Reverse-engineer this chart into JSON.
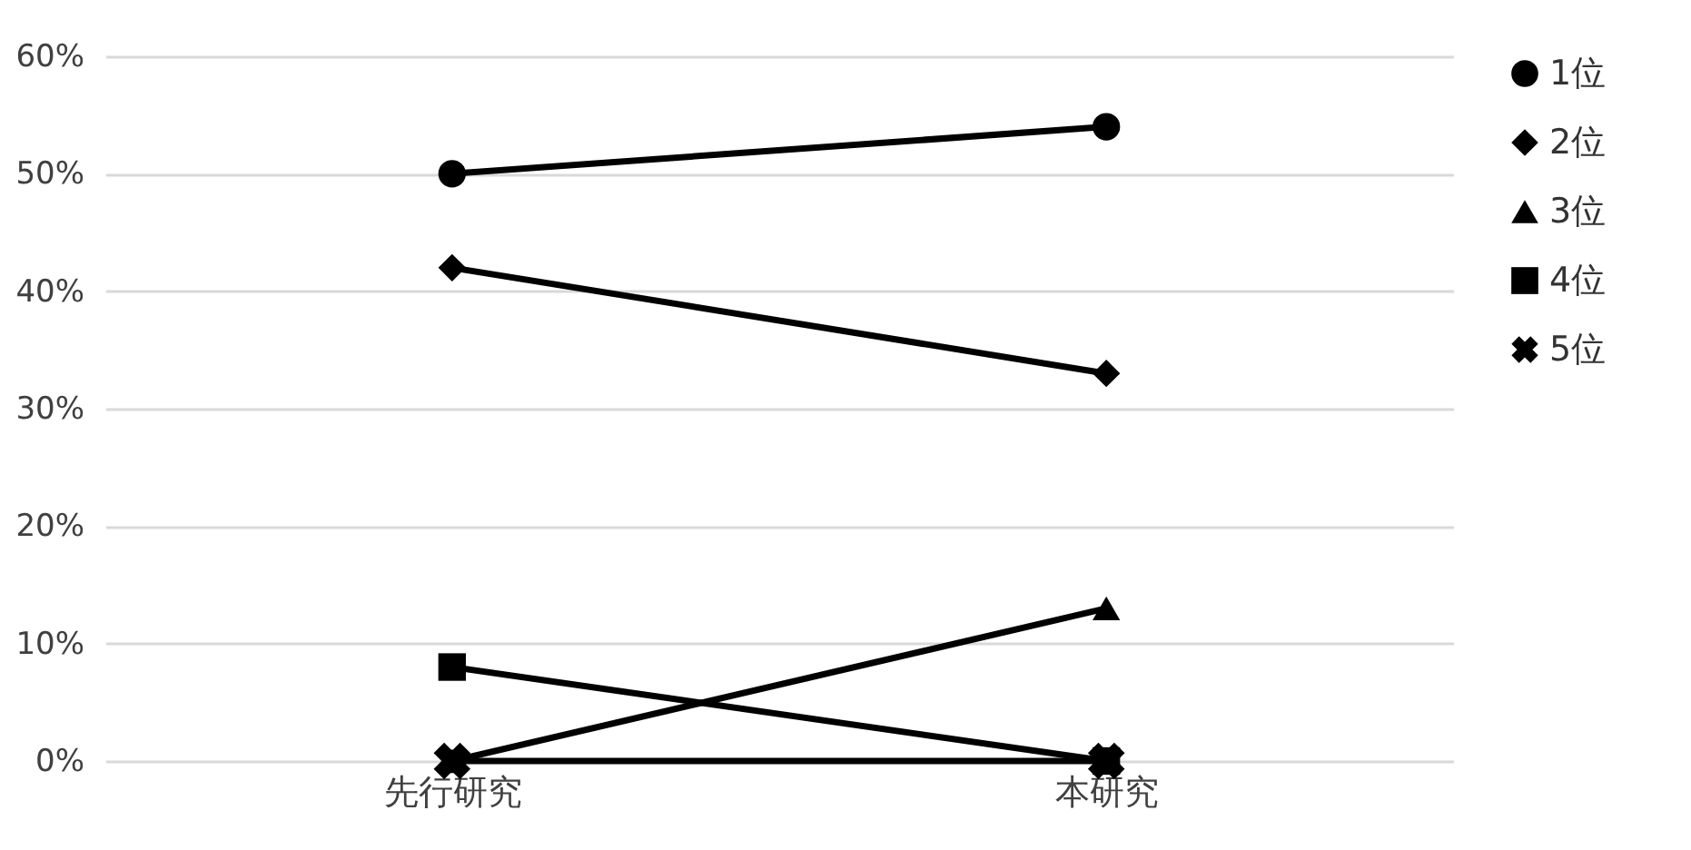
{
  "chart_data": {
    "type": "line",
    "categories": [
      "先行研究",
      "本研究"
    ],
    "series": [
      {
        "name": "1位",
        "color": "#000000",
        "marker": "circle",
        "values": [
          50,
          54
        ]
      },
      {
        "name": "2位",
        "color": "#000000",
        "marker": "diamond",
        "values": [
          42,
          33
        ]
      },
      {
        "name": "3位",
        "color": "#000000",
        "marker": "triangle",
        "values": [
          0,
          13
        ]
      },
      {
        "name": "4位",
        "color": "#000000",
        "marker": "square",
        "values": [
          8,
          0
        ]
      },
      {
        "name": "5位",
        "color": "#000000",
        "marker": "cross",
        "values": [
          0,
          0
        ]
      }
    ],
    "ylim": [
      0,
      60
    ],
    "yticks": [
      {
        "value": 0,
        "label": "0%"
      },
      {
        "value": 10,
        "label": "10%"
      },
      {
        "value": 20,
        "label": "20%"
      },
      {
        "value": 30,
        "label": "30%"
      },
      {
        "value": 40,
        "label": "40%"
      },
      {
        "value": 50,
        "label": "50%"
      },
      {
        "value": 60,
        "label": "60%"
      }
    ],
    "grid": "y",
    "legend": "right",
    "line_style": "solid"
  }
}
